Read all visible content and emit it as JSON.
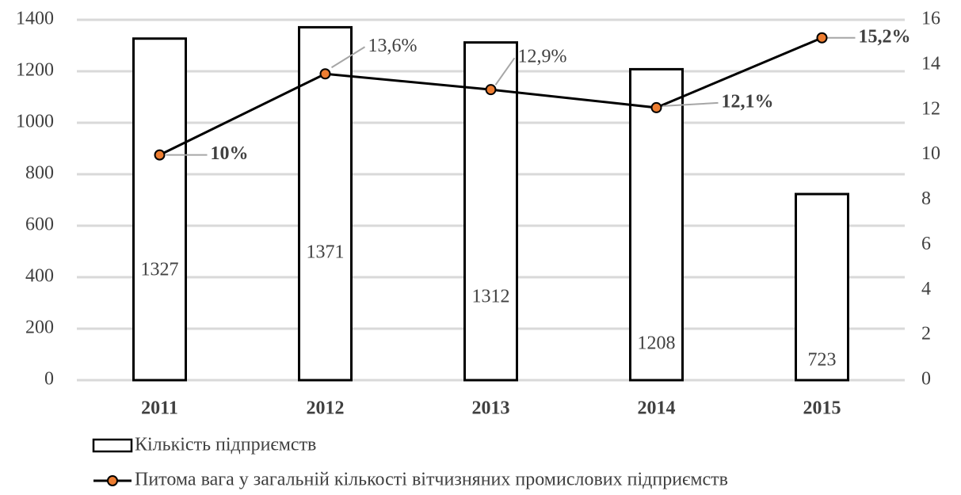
{
  "chart_data": {
    "type": "bar",
    "categories": [
      "2011",
      "2012",
      "2013",
      "2014",
      "2015"
    ],
    "series": [
      {
        "name": "Кількість підприємств",
        "type": "bar",
        "color": "#ffffff",
        "values": [
          1327,
          1371,
          1312,
          1208,
          723
        ]
      },
      {
        "name": "Питома вага у загальній кількості вітчизняних промислових підприємств",
        "type": "line",
        "axis": "y2",
        "color": "#000000",
        "marker_color": "#ed7d31",
        "values": [
          10,
          13.6,
          12.9,
          12.1,
          15.2
        ],
        "value_labels": [
          "10%",
          "13,6%",
          "12,9%",
          "12,1%",
          "15,2%"
        ]
      }
    ],
    "ylim": [
      0,
      1400
    ],
    "yticks": [
      0,
      200,
      400,
      600,
      800,
      1000,
      1200,
      1400
    ],
    "y2lim": [
      0,
      16
    ],
    "y2ticks": [
      0,
      2,
      4,
      6,
      8,
      10,
      12,
      14,
      16
    ],
    "grid": true
  }
}
